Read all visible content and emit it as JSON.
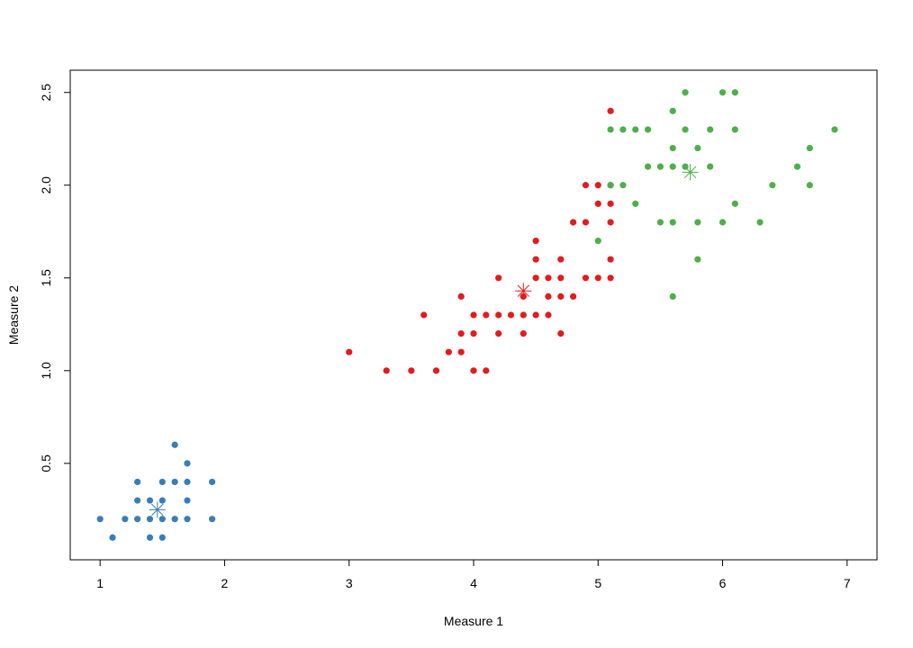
{
  "chart_data": {
    "type": "scatter",
    "xlabel": "Measure 1",
    "ylabel": "Measure 2",
    "xlim": [
      0.76,
      7.24
    ],
    "ylim": [
      -0.02,
      2.62
    ],
    "xticks": [
      1,
      2,
      3,
      4,
      5,
      6,
      7
    ],
    "xtick_labels": [
      "1",
      "2",
      "3",
      "4",
      "5",
      "6",
      "7"
    ],
    "yticks": [
      0.5,
      1.0,
      1.5,
      2.0,
      2.5
    ],
    "ytick_labels": [
      "0.5",
      "1.0",
      "1.5",
      "2.0",
      "2.5"
    ],
    "grid": false,
    "legend": "none",
    "series": [
      {
        "color": "#377EB8",
        "points": [
          [
            1.0,
            0.2
          ],
          [
            1.1,
            0.1
          ],
          [
            1.2,
            0.2
          ],
          [
            1.3,
            0.2
          ],
          [
            1.3,
            0.3
          ],
          [
            1.3,
            0.4
          ],
          [
            1.4,
            0.1
          ],
          [
            1.4,
            0.2
          ],
          [
            1.4,
            0.3
          ],
          [
            1.5,
            0.1
          ],
          [
            1.5,
            0.2
          ],
          [
            1.5,
            0.3
          ],
          [
            1.5,
            0.4
          ],
          [
            1.6,
            0.2
          ],
          [
            1.6,
            0.4
          ],
          [
            1.6,
            0.6
          ],
          [
            1.7,
            0.2
          ],
          [
            1.7,
            0.3
          ],
          [
            1.7,
            0.4
          ],
          [
            1.7,
            0.5
          ],
          [
            1.9,
            0.2
          ],
          [
            1.9,
            0.4
          ]
        ],
        "center": [
          1.46,
          0.25
        ]
      },
      {
        "color": "#E41A1C",
        "points": [
          [
            3.0,
            1.1
          ],
          [
            3.3,
            1.0
          ],
          [
            3.5,
            1.0
          ],
          [
            3.6,
            1.3
          ],
          [
            3.7,
            1.0
          ],
          [
            3.8,
            1.1
          ],
          [
            3.9,
            1.1
          ],
          [
            3.9,
            1.2
          ],
          [
            3.9,
            1.4
          ],
          [
            4.0,
            1.0
          ],
          [
            4.0,
            1.2
          ],
          [
            4.0,
            1.3
          ],
          [
            4.1,
            1.0
          ],
          [
            4.1,
            1.3
          ],
          [
            4.2,
            1.2
          ],
          [
            4.2,
            1.3
          ],
          [
            4.2,
            1.5
          ],
          [
            4.3,
            1.3
          ],
          [
            4.4,
            1.2
          ],
          [
            4.4,
            1.3
          ],
          [
            4.4,
            1.4
          ],
          [
            4.5,
            1.3
          ],
          [
            4.5,
            1.5
          ],
          [
            4.5,
            1.6
          ],
          [
            4.5,
            1.7
          ],
          [
            4.6,
            1.3
          ],
          [
            4.6,
            1.4
          ],
          [
            4.6,
            1.5
          ],
          [
            4.7,
            1.2
          ],
          [
            4.7,
            1.4
          ],
          [
            4.7,
            1.5
          ],
          [
            4.7,
            1.6
          ],
          [
            4.8,
            1.4
          ],
          [
            4.8,
            1.8
          ],
          [
            4.9,
            1.5
          ],
          [
            4.9,
            1.8
          ],
          [
            4.9,
            2.0
          ],
          [
            5.0,
            1.5
          ],
          [
            5.0,
            1.9
          ],
          [
            5.0,
            2.0
          ],
          [
            5.1,
            1.5
          ],
          [
            5.1,
            1.6
          ],
          [
            5.1,
            1.8
          ],
          [
            5.1,
            1.9
          ],
          [
            5.1,
            2.0
          ],
          [
            5.1,
            2.4
          ]
        ],
        "center": [
          4.4,
          1.43
        ]
      },
      {
        "color": "#4DAF4A",
        "points": [
          [
            5.0,
            1.7
          ],
          [
            5.1,
            2.0
          ],
          [
            5.1,
            2.3
          ],
          [
            5.2,
            2.0
          ],
          [
            5.2,
            2.3
          ],
          [
            5.3,
            1.9
          ],
          [
            5.3,
            2.3
          ],
          [
            5.4,
            2.1
          ],
          [
            5.4,
            2.3
          ],
          [
            5.5,
            1.8
          ],
          [
            5.5,
            2.1
          ],
          [
            5.6,
            1.4
          ],
          [
            5.6,
            1.8
          ],
          [
            5.6,
            2.1
          ],
          [
            5.6,
            2.2
          ],
          [
            5.6,
            2.4
          ],
          [
            5.7,
            2.1
          ],
          [
            5.7,
            2.3
          ],
          [
            5.7,
            2.5
          ],
          [
            5.8,
            1.6
          ],
          [
            5.8,
            1.8
          ],
          [
            5.8,
            2.2
          ],
          [
            5.9,
            2.1
          ],
          [
            5.9,
            2.3
          ],
          [
            6.0,
            1.8
          ],
          [
            6.0,
            2.5
          ],
          [
            6.1,
            1.9
          ],
          [
            6.1,
            2.3
          ],
          [
            6.1,
            2.5
          ],
          [
            6.3,
            1.8
          ],
          [
            6.4,
            2.0
          ],
          [
            6.6,
            2.1
          ],
          [
            6.7,
            2.0
          ],
          [
            6.7,
            2.2
          ],
          [
            6.9,
            2.3
          ]
        ],
        "center": [
          5.74,
          2.07
        ]
      }
    ]
  }
}
